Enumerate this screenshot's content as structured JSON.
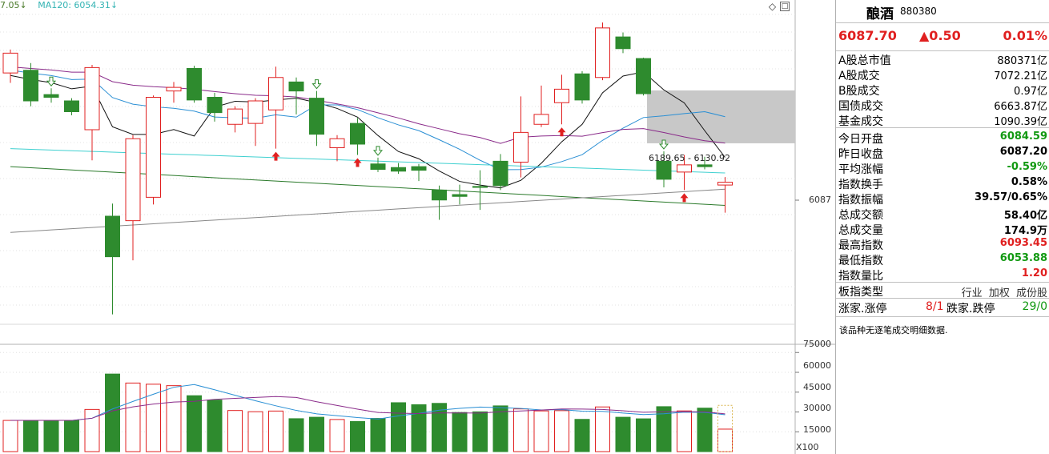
{
  "ma_legend": {
    "first": "7.05↓",
    "second": "MA120: 6054.31↓"
  },
  "chart": {
    "price_label": "6087",
    "range_label": "6189.65 - 6130.92",
    "vol_ticks": [
      "75000",
      "60000",
      "45000",
      "30000",
      "15000"
    ],
    "vol_unit": "X100",
    "colors": {
      "up": "#e02020",
      "down": "#2e8b2e",
      "ma_black": "#111111",
      "ma_purple": "#8a2b8a",
      "ma_blue": "#2a8fd4",
      "ma_cyan": "#3fd0d0",
      "ma_green": "#2b7a2b",
      "ma_gray": "#888888"
    }
  },
  "chart_data": {
    "type": "candlestick",
    "candles": [
      {
        "o": 6209,
        "c": 6231,
        "h": 6235,
        "l": 6198
      },
      {
        "o": 6212,
        "c": 6178,
        "h": 6220,
        "l": 6172
      },
      {
        "o": 6185,
        "c": 6182,
        "h": 6192,
        "l": 6176
      },
      {
        "o": 6178,
        "c": 6166,
        "h": 6181,
        "l": 6162
      },
      {
        "o": 6146,
        "c": 6215,
        "h": 6218,
        "l": 6112
      },
      {
        "o": 6050,
        "c": 6005,
        "h": 6064,
        "l": 5941
      },
      {
        "o": 6045,
        "c": 6136,
        "h": 6140,
        "l": 6001
      },
      {
        "o": 6071,
        "c": 6182,
        "h": 6184,
        "l": 6063
      },
      {
        "o": 6189,
        "c": 6193,
        "h": 6199,
        "l": 6176
      },
      {
        "o": 6214,
        "c": 6179,
        "h": 6217,
        "l": 6176
      },
      {
        "o": 6182,
        "c": 6165,
        "h": 6187,
        "l": 6155
      },
      {
        "o": 6152,
        "c": 6169,
        "h": 6172,
        "l": 6143
      },
      {
        "o": 6153,
        "c": 6178,
        "h": 6181,
        "l": 6128
      },
      {
        "o": 6168,
        "c": 6204,
        "h": 6216,
        "l": 6125
      },
      {
        "o": 6199,
        "c": 6189,
        "h": 6204,
        "l": 6163
      },
      {
        "o": 6181,
        "c": 6141,
        "h": 6189,
        "l": 6128
      },
      {
        "o": 6126,
        "c": 6136,
        "h": 6140,
        "l": 6111
      },
      {
        "o": 6153,
        "c": 6130,
        "h": 6159,
        "l": 6118
      },
      {
        "o": 6108,
        "c": 6102,
        "h": 6115,
        "l": 6099
      },
      {
        "o": 6104,
        "c": 6100,
        "h": 6109,
        "l": 6097
      },
      {
        "o": 6105,
        "c": 6101,
        "h": 6108,
        "l": 6089
      },
      {
        "o": 6079,
        "c": 6068,
        "h": 6084,
        "l": 6046
      },
      {
        "o": 6074,
        "c": 6072,
        "h": 6085,
        "l": 6063
      },
      {
        "o": 6083,
        "c": 6082,
        "h": 6101,
        "l": 6057
      },
      {
        "o": 6111,
        "c": 6084,
        "h": 6119,
        "l": 6079
      },
      {
        "o": 6110,
        "c": 6143,
        "h": 6183,
        "l": 6093
      },
      {
        "o": 6152,
        "c": 6163,
        "h": 6195,
        "l": 6149
      },
      {
        "o": 6176,
        "c": 6191,
        "h": 6207,
        "l": 6152
      },
      {
        "o": 6208,
        "c": 6179,
        "h": 6211,
        "l": 6175
      },
      {
        "o": 6204,
        "c": 6259,
        "h": 6265,
        "l": 6201
      },
      {
        "o": 6249,
        "c": 6236,
        "h": 6254,
        "l": 6231
      },
      {
        "o": 6225,
        "c": 6186,
        "h": 6226,
        "l": 6184
      },
      {
        "o": 6111,
        "c": 6091,
        "h": 6122,
        "l": 6082
      },
      {
        "o": 6099,
        "c": 6107,
        "h": 6118,
        "l": 6079
      },
      {
        "o": 6107,
        "c": 6105,
        "h": 6116,
        "l": 6102
      },
      {
        "o": 6084.59,
        "c": 6087.7,
        "h": 6093.45,
        "l": 6053.88
      }
    ],
    "volumes": [
      236,
      236,
      236,
      236,
      319,
      587,
      519,
      510,
      499,
      423,
      390,
      311,
      302,
      307,
      249,
      260,
      243,
      228,
      251,
      370,
      355,
      365,
      296,
      301,
      346,
      323,
      308,
      310,
      244,
      338,
      260,
      248,
      340,
      308,
      329,
      170
    ],
    "volume_ylim": [
      0,
      80000
    ],
    "price_ylim": [
      5930,
      6290
    ],
    "arrows_up": [
      13,
      17,
      27,
      33
    ],
    "arrows_down_hollow": [
      2,
      15,
      18,
      32
    ]
  },
  "panel": {
    "name": "酿酒",
    "code": "880380",
    "price": "6087.70",
    "change": "▲0.50",
    "pct": "0.01%",
    "rows1": [
      {
        "label": "A股总市值",
        "value": "880371亿",
        "cls": "light"
      },
      {
        "label": "A股成交",
        "value": "7072.21亿",
        "cls": "light"
      },
      {
        "label": "B股成交",
        "value": "0.97亿",
        "cls": "light"
      },
      {
        "label": "国债成交",
        "value": "6663.87亿",
        "cls": "light"
      },
      {
        "label": "基金成交",
        "value": "1090.39亿",
        "cls": "light"
      }
    ],
    "rows2": [
      {
        "label": "今日开盘",
        "value": "6084.59",
        "cls": "green"
      },
      {
        "label": "昨日收盘",
        "value": "6087.20",
        "cls": ""
      },
      {
        "label": "平均涨幅",
        "value": "-0.59%",
        "cls": "green"
      },
      {
        "label": "指数换手",
        "value": "0.58%",
        "cls": ""
      },
      {
        "label": "指数振幅",
        "value": "39.57/0.65%",
        "cls": ""
      },
      {
        "label": "总成交额",
        "value": "58.40亿",
        "cls": ""
      },
      {
        "label": "总成交量",
        "value": "174.9万",
        "cls": ""
      },
      {
        "label": "最高指数",
        "value": "6093.45",
        "cls": "red"
      },
      {
        "label": "最低指数",
        "value": "6053.88",
        "cls": "green"
      },
      {
        "label": "指数量比",
        "value": "1.20",
        "cls": "red"
      }
    ],
    "type_label": "板指类型",
    "type_opts": [
      "行业",
      "加权",
      "成份股"
    ],
    "ud": {
      "up_label": "涨家.涨停",
      "up_val": "8/1",
      "down_label": "跌家.跌停",
      "down_val": "29/0"
    },
    "note": "该品种无逐笔成交明细数据."
  }
}
